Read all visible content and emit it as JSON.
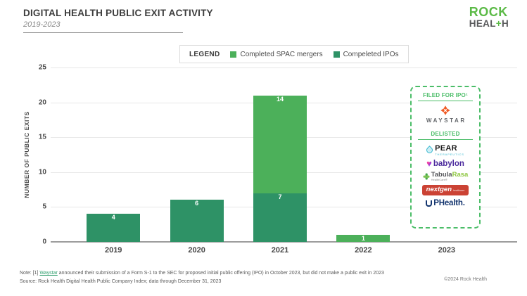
{
  "header": {
    "title": "DIGITAL HEALTH PUBLIC EXIT ACTIVITY",
    "subtitle": "2019-2023",
    "logo": {
      "line1": "ROCK",
      "line2_pre": "HEAL",
      "line2_plus": "+",
      "line2_post": "H",
      "green": "#5cba47"
    }
  },
  "legend": {
    "label": "LEGEND",
    "items": [
      {
        "label": "Completed SPAC mergers",
        "color": "#4cb05a"
      },
      {
        "label": "Compeleted IPOs",
        "color": "#2e9266"
      }
    ]
  },
  "chart_data": {
    "type": "bar",
    "stacked": true,
    "title": "DIGITAL HEALTH PUBLIC EXIT ACTIVITY",
    "subtitle": "2019-2023",
    "categories": [
      "2019",
      "2020",
      "2021",
      "2022",
      "2023"
    ],
    "series": [
      {
        "name": "Compeleted IPOs",
        "color": "#2e9266",
        "values": [
          4,
          6,
          7,
          0,
          0
        ]
      },
      {
        "name": "Completed SPAC mergers",
        "color": "#4cb05a",
        "values": [
          0,
          0,
          14,
          1,
          0
        ]
      }
    ],
    "totals": [
      4,
      6,
      21,
      1,
      0
    ],
    "xlabel": "",
    "ylabel": "NUMBER OF PUBLIC EXITS",
    "ylim": [
      0,
      25
    ],
    "yticks": [
      0,
      5,
      10,
      15,
      20,
      25
    ],
    "grid": true,
    "legend_position": "top-center"
  },
  "callout": {
    "accent": "#4bbd68",
    "filed_header": "FILED FOR IPO¹",
    "waystar_label": "WAYSTAR",
    "delisted_header": "DELISTED",
    "companies": {
      "pear": {
        "name": "PEAR",
        "sub": "THERAPEUTICS"
      },
      "babylon": {
        "name": "babylon"
      },
      "tabula_rasa": {
        "name1": "Tabula",
        "name2": "Rasa",
        "sub": "HealthCare®"
      },
      "nextgen": {
        "name": "nextgen",
        "sub": "healthcare"
      },
      "uphealth": {
        "name": "PHealth."
      }
    }
  },
  "footer": {
    "note_prefix": "Note: [1] ",
    "note_link": "Waystar",
    "note_suffix": " announced their submission of a Form S-1 to the SEC for proposed initial public offering (IPO) in October 2023, but did not make a public exit in 2023",
    "source": "Source: Rock Health Digital Health Public Company Index; data through December 31, 2023",
    "copyright": "©2024 Rock Health"
  }
}
